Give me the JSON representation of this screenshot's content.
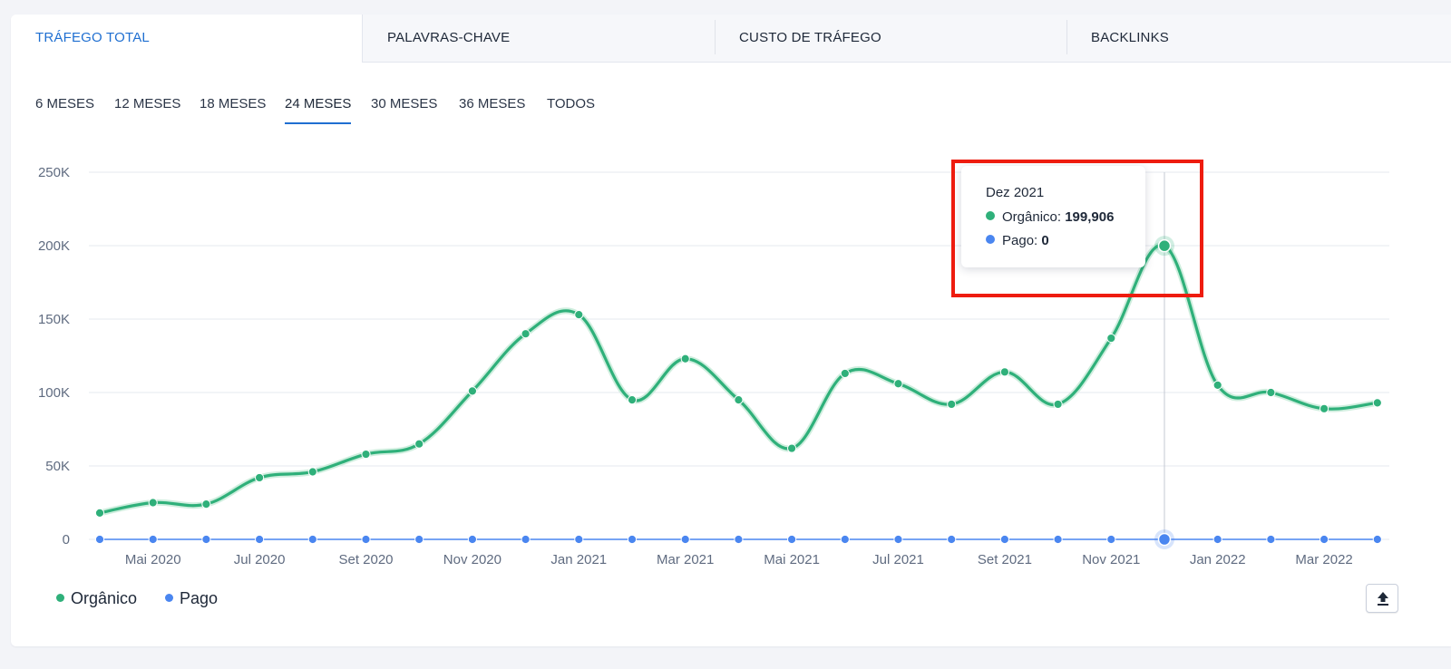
{
  "tabs": [
    {
      "label": "TRÁFEGO TOTAL",
      "active": true
    },
    {
      "label": "PALAVRAS-CHAVE",
      "active": false
    },
    {
      "label": "CUSTO DE TRÁFEGO",
      "active": false
    },
    {
      "label": "BACKLINKS",
      "active": false
    }
  ],
  "periods": [
    {
      "label": "6 MESES",
      "active": false
    },
    {
      "label": "12 MESES",
      "active": false
    },
    {
      "label": "18 MESES",
      "active": false
    },
    {
      "label": "24 MESES",
      "active": true
    },
    {
      "label": "30 MESES",
      "active": false
    },
    {
      "label": "36 MESES",
      "active": false
    },
    {
      "label": "TODOS",
      "active": false
    }
  ],
  "colors": {
    "accent": "#1f6fd1",
    "organic": "#2fb07a",
    "paid": "#4a86f0",
    "highlight": "#ee1c0f"
  },
  "tooltip": {
    "title": "Dez 2021",
    "organic_label": "Orgânico:",
    "organic_value": "199,906",
    "paid_label": "Pago:",
    "paid_value": "0"
  },
  "legend": {
    "organic": "Orgânico",
    "paid": "Pago"
  },
  "export_icon": "upload-icon",
  "chart_data": {
    "type": "line",
    "x": [
      "Abr 2020",
      "Mai 2020",
      "Jun 2020",
      "Jul 2020",
      "Ago 2020",
      "Set 2020",
      "Out 2020",
      "Nov 2020",
      "Dez 2020",
      "Jan 2021",
      "Fev 2021",
      "Mar 2021",
      "Abr 2021",
      "Mai 2021",
      "Jun 2021",
      "Jul 2021",
      "Ago 2021",
      "Set 2021",
      "Out 2021",
      "Nov 2021",
      "Dez 2021",
      "Jan 2022",
      "Fev 2022",
      "Mar 2022",
      "Abr 2022"
    ],
    "x_tick_labels": [
      "Mai 2020",
      "Jul 2020",
      "Set 2020",
      "Nov 2020",
      "Jan 2021",
      "Mar 2021",
      "Mai 2021",
      "Jul 2021",
      "Set 2021",
      "Nov 2021",
      "Jan 2022",
      "Mar 2022"
    ],
    "series": [
      {
        "name": "Orgânico",
        "values": [
          18000,
          25000,
          24000,
          42000,
          46000,
          58000,
          65000,
          101000,
          140000,
          153000,
          95000,
          123000,
          95000,
          62000,
          113000,
          106000,
          92000,
          114000,
          92000,
          137000,
          199906,
          105000,
          100000,
          89000,
          93000
        ]
      },
      {
        "name": "Pago",
        "values": [
          0,
          0,
          0,
          0,
          0,
          0,
          0,
          0,
          0,
          0,
          0,
          0,
          0,
          0,
          0,
          0,
          0,
          0,
          0,
          0,
          0,
          0,
          0,
          0,
          0
        ]
      }
    ],
    "y_ticks": [
      "0",
      "50K",
      "100K",
      "150K",
      "200K",
      "250K"
    ],
    "ylim": [
      0,
      250000
    ],
    "highlight_index": 20,
    "grid": true,
    "legend_position": "bottom-left"
  }
}
